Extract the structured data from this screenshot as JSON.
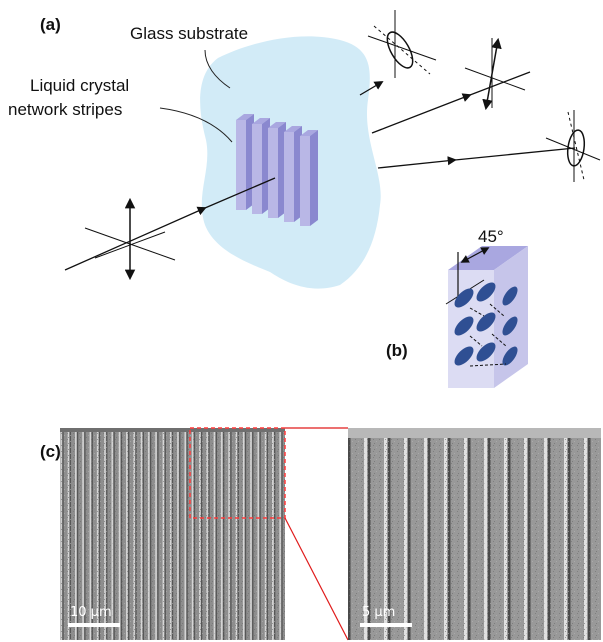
{
  "panels": {
    "a": "(a)",
    "b": "(b)",
    "c": "(c)"
  },
  "labels": {
    "substrate": "Glass substrate",
    "stripes_line1": "Liquid crystal",
    "stripes_line2": "network stripes",
    "angle": "45°"
  },
  "scalebars": {
    "left": "10 µm",
    "right": "5 µm"
  },
  "colors": {
    "glass": "#cde9f6",
    "stripe_front": "#b9b7e6",
    "stripe_side": "#8a88cf",
    "ellipsoid": "#2f4f93",
    "inset_highlight": "#ff3b3b",
    "zoom_lines": "#e01b1b"
  }
}
